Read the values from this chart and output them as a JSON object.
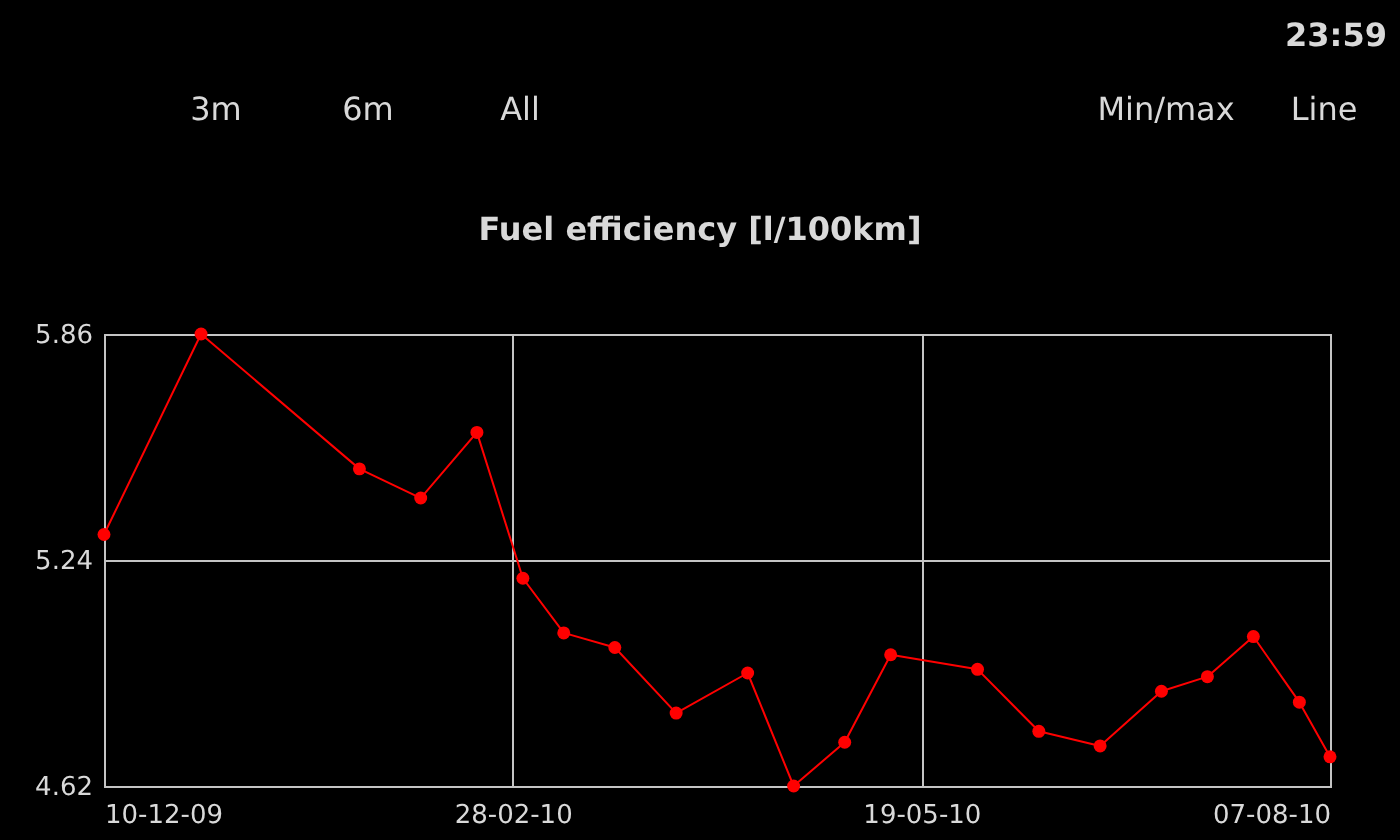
{
  "chart_data": {
    "type": "line",
    "title": "Fuel efficiency [l/100km]",
    "annotations": [
      "23:59",
      "3m",
      "6m",
      "All",
      "Min/max",
      "Line"
    ],
    "x": [
      "2009-12-10",
      "2009-12-29",
      "2010-01-29",
      "2010-02-10",
      "2010-02-21",
      "2010-03-02",
      "2010-03-10",
      "2010-03-20",
      "2010-04-01",
      "2010-04-15",
      "2010-04-24",
      "2010-05-04",
      "2010-05-13",
      "2010-05-30",
      "2010-06-11",
      "2010-06-23",
      "2010-07-05",
      "2010-07-14",
      "2010-07-23",
      "2010-08-01",
      "2010-08-07"
    ],
    "series": [
      {
        "color": "#ff0000",
        "values": [
          5.31,
          5.86,
          5.49,
          5.41,
          5.59,
          5.19,
          5.04,
          5.0,
          4.82,
          4.93,
          4.62,
          4.74,
          4.98,
          4.94,
          4.77,
          4.73,
          4.88,
          4.92,
          5.03,
          4.85,
          4.7
        ]
      }
    ],
    "xlim": [
      "2009-12-10",
      "2010-08-07"
    ],
    "xticks": [
      {
        "value": "2009-12-10",
        "label": "10-12-09"
      },
      {
        "value": "2010-02-28",
        "label": "28-02-10"
      },
      {
        "value": "2010-05-19",
        "label": "19-05-10"
      },
      {
        "value": "2010-08-07",
        "label": "07-08-10"
      }
    ],
    "ylim": [
      4.62,
      5.86
    ],
    "yticks": [
      4.62,
      5.24,
      5.86
    ],
    "grid": true,
    "marker": "circle",
    "line_style": "solid"
  }
}
